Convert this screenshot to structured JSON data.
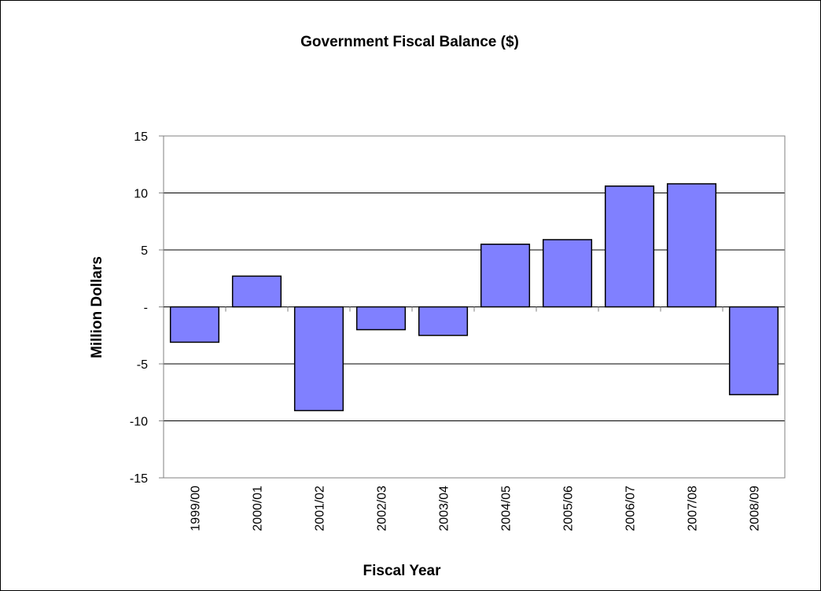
{
  "chart_data": {
    "type": "bar",
    "title": "Government Fiscal Balance ($)",
    "xlabel": "Fiscal Year",
    "ylabel": "Million Dollars",
    "categories": [
      "1999/00",
      "2000/01",
      "2001/02",
      "2002/03",
      "2003/04",
      "2004/05",
      "2005/06",
      "2006/07",
      "2007/08",
      "2008/09"
    ],
    "values": [
      -3.1,
      2.7,
      -9.1,
      -2.0,
      -2.5,
      5.5,
      5.9,
      10.6,
      10.8,
      -7.7
    ],
    "ylim": [
      -15,
      15
    ],
    "yticks": [
      {
        "value": 15,
        "label": "15"
      },
      {
        "value": 10,
        "label": "10"
      },
      {
        "value": 5,
        "label": "5"
      },
      {
        "value": 0,
        "label": "-"
      },
      {
        "value": -5,
        "label": "-5"
      },
      {
        "value": -10,
        "label": "-10"
      },
      {
        "value": -15,
        "label": "-15"
      }
    ],
    "grid": true,
    "legend": "none",
    "colors": {
      "bar_fill": "#8080ff",
      "bar_stroke": "#000000",
      "grid": "#000000",
      "axis": "#808080"
    }
  }
}
